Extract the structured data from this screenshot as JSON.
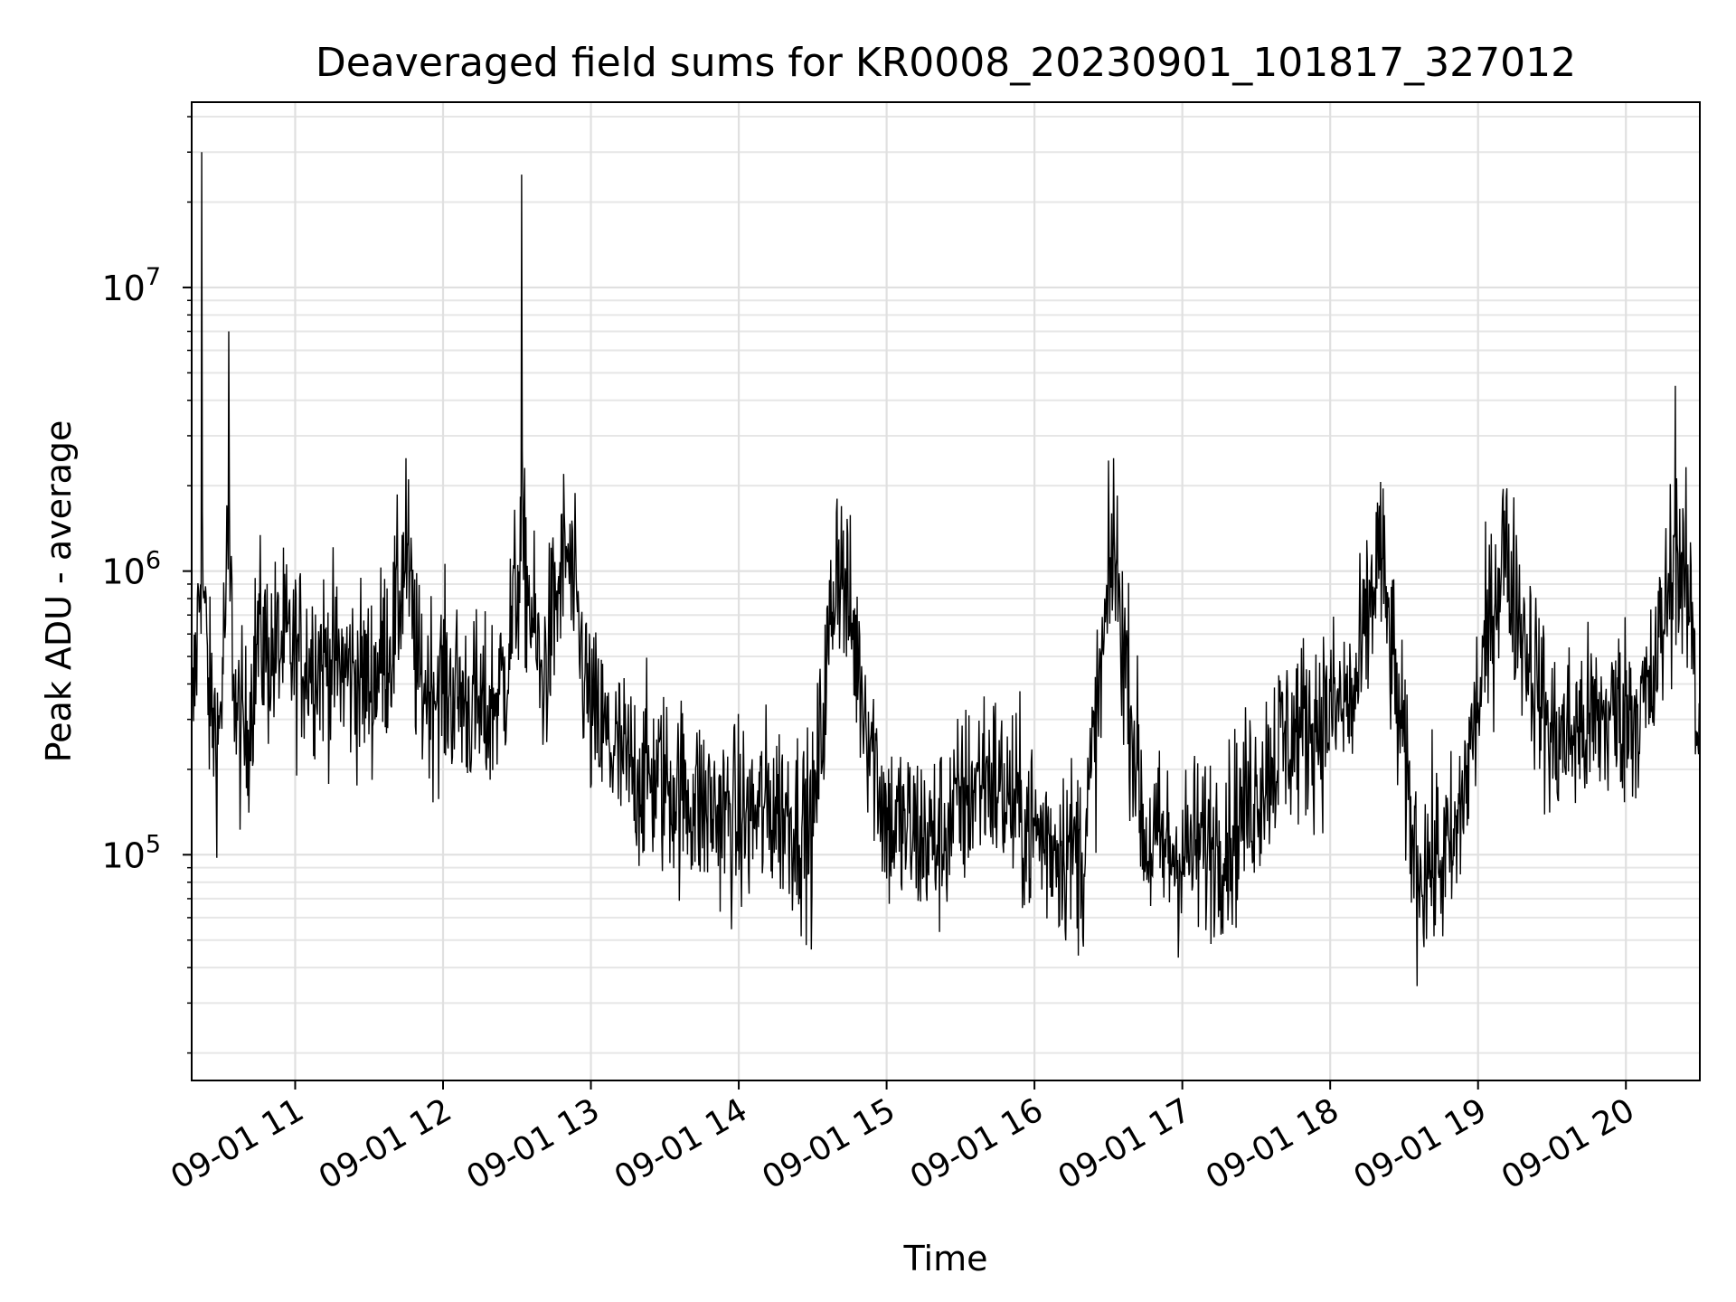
{
  "chart_data": {
    "type": "line",
    "title": "Deaveraged field sums for KR0008_20230901_101817_327012",
    "xlabel": "Time",
    "ylabel": "Peak ADU - average",
    "yscale": "log",
    "ylim": [
      16000,
      45000000
    ],
    "xlim": [
      "2023-09-01 10:18",
      "2023-09-01 20:30"
    ],
    "grid": "major and minor, light gray",
    "line_color": "#000000",
    "x_ticks": [
      {
        "time": "2023-09-01 11:00",
        "label": "09-01 11"
      },
      {
        "time": "2023-09-01 12:00",
        "label": "09-01 12"
      },
      {
        "time": "2023-09-01 13:00",
        "label": "09-01 13"
      },
      {
        "time": "2023-09-01 14:00",
        "label": "09-01 14"
      },
      {
        "time": "2023-09-01 15:00",
        "label": "09-01 15"
      },
      {
        "time": "2023-09-01 16:00",
        "label": "09-01 16"
      },
      {
        "time": "2023-09-01 17:00",
        "label": "09-01 17"
      },
      {
        "time": "2023-09-01 18:00",
        "label": "09-01 18"
      },
      {
        "time": "2023-09-01 19:00",
        "label": "09-01 19"
      },
      {
        "time": "2023-09-01 20:00",
        "label": "09-01 20"
      }
    ],
    "y_ticks": [
      {
        "value": 100000,
        "base": "10",
        "exp": "5"
      },
      {
        "value": 1000000,
        "base": "10",
        "exp": "6"
      },
      {
        "value": 10000000,
        "base": "10",
        "exp": "7"
      }
    ],
    "series": [
      {
        "x": [
          "2023-09-01 10:18",
          "2023-09-01 10:22",
          "2023-09-01 10:25",
          "2023-09-01 10:29",
          "2023-09-01 10:33",
          "2023-09-01 10:36",
          "2023-09-01 10:40",
          "2023-09-01 10:45",
          "2023-09-01 10:50",
          "2023-09-01 10:55",
          "2023-09-01 11:00",
          "2023-09-01 11:10",
          "2023-09-01 11:20",
          "2023-09-01 11:30",
          "2023-09-01 11:40",
          "2023-09-01 11:45",
          "2023-09-01 11:50",
          "2023-09-01 12:00",
          "2023-09-01 12:10",
          "2023-09-01 12:17",
          "2023-09-01 12:25",
          "2023-09-01 12:32",
          "2023-09-01 12:40",
          "2023-09-01 12:50",
          "2023-09-01 13:00",
          "2023-09-01 13:15",
          "2023-09-01 13:30",
          "2023-09-01 13:45",
          "2023-09-01 14:00",
          "2023-09-01 14:15",
          "2023-09-01 14:30",
          "2023-09-01 14:40",
          "2023-09-01 15:00",
          "2023-09-01 15:20",
          "2023-09-01 15:40",
          "2023-09-01 16:00",
          "2023-09-01 16:20",
          "2023-09-01 16:32",
          "2023-09-01 16:45",
          "2023-09-01 17:00",
          "2023-09-01 17:20",
          "2023-09-01 17:40",
          "2023-09-01 17:55",
          "2023-09-01 18:10",
          "2023-09-01 18:20",
          "2023-09-01 18:35",
          "2023-09-01 18:50",
          "2023-09-01 19:10",
          "2023-09-01 19:30",
          "2023-09-01 19:50",
          "2023-09-01 20:10",
          "2023-09-01 20:20",
          "2023-09-01 20:28"
        ],
        "y": [
          250000,
          30000000,
          350000,
          250000,
          7000000,
          300000,
          250000,
          600000,
          500000,
          550000,
          500000,
          500000,
          450000,
          400000,
          600000,
          2500000,
          400000,
          400000,
          350000,
          300000,
          420000,
          25000000,
          400000,
          1500000,
          300000,
          200000,
          180000,
          150000,
          130000,
          150000,
          120000,
          1800000,
          130000,
          110000,
          200000,
          120000,
          100000,
          2500000,
          110000,
          100000,
          120000,
          250000,
          300000,
          350000,
          1700000,
          90000,
          100000,
          1800000,
          250000,
          300000,
          350000,
          4500000,
          600000
        ]
      }
    ]
  }
}
